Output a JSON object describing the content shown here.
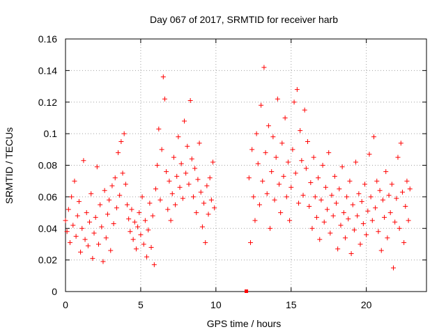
{
  "chart_data": {
    "type": "scatter",
    "title": "Day 067 of 2017, SRMTID for receiver harb",
    "xlabel": "GPS time / hours",
    "ylabel": "SRMTID / TECUs",
    "xlim": [
      0,
      24
    ],
    "ylim": [
      0,
      0.16
    ],
    "x_ticks": [
      0,
      5,
      10,
      15,
      20
    ],
    "x_tick_labels": [
      "0",
      "5",
      "10",
      "15",
      "20"
    ],
    "y_ticks": [
      0,
      0.02,
      0.04,
      0.06,
      0.08,
      0.1,
      0.12,
      0.14,
      0.16
    ],
    "y_tick_labels": [
      "0",
      "0.02",
      "0.04",
      "0.06",
      "0.08",
      "0.1",
      "0.12",
      "0.14",
      "0.16"
    ],
    "grid": true,
    "marker": "+",
    "series": [
      {
        "name": "SRMTID",
        "color": "#ff0000",
        "points": [
          [
            0.0,
            0.045
          ],
          [
            0.1,
            0.038
          ],
          [
            0.2,
            0.052
          ],
          [
            0.3,
            0.031
          ],
          [
            0.4,
            0.06
          ],
          [
            0.5,
            0.042
          ],
          [
            0.6,
            0.07
          ],
          [
            0.7,
            0.035
          ],
          [
            0.8,
            0.048
          ],
          [
            0.9,
            0.057
          ],
          [
            1.0,
            0.025
          ],
          [
            1.1,
            0.04
          ],
          [
            1.2,
            0.083
          ],
          [
            1.3,
            0.033
          ],
          [
            1.4,
            0.05
          ],
          [
            1.5,
            0.029
          ],
          [
            1.6,
            0.044
          ],
          [
            1.7,
            0.062
          ],
          [
            1.8,
            0.021
          ],
          [
            1.9,
            0.037
          ],
          [
            2.0,
            0.047
          ],
          [
            2.1,
            0.079
          ],
          [
            2.2,
            0.03
          ],
          [
            2.3,
            0.055
          ],
          [
            2.4,
            0.041
          ],
          [
            2.5,
            0.019
          ],
          [
            2.6,
            0.064
          ],
          [
            2.7,
            0.034
          ],
          [
            2.8,
            0.049
          ],
          [
            2.9,
            0.058
          ],
          [
            3.0,
            0.026
          ],
          [
            3.1,
            0.067
          ],
          [
            3.2,
            0.043
          ],
          [
            3.3,
            0.072
          ],
          [
            3.4,
            0.053
          ],
          [
            3.5,
            0.088
          ],
          [
            3.6,
            0.061
          ],
          [
            3.7,
            0.095
          ],
          [
            3.8,
            0.075
          ],
          [
            3.9,
            0.1
          ],
          [
            4.0,
            0.068
          ],
          [
            4.1,
            0.055
          ],
          [
            4.2,
            0.046
          ],
          [
            4.3,
            0.038
          ],
          [
            4.4,
            0.052
          ],
          [
            4.5,
            0.033
          ],
          [
            4.6,
            0.044
          ],
          [
            4.7,
            0.027
          ],
          [
            4.8,
            0.041
          ],
          [
            4.9,
            0.05
          ],
          [
            5.0,
            0.036
          ],
          [
            5.1,
            0.06
          ],
          [
            5.2,
            0.03
          ],
          [
            5.3,
            0.045
          ],
          [
            5.4,
            0.022
          ],
          [
            5.5,
            0.039
          ],
          [
            5.6,
            0.056
          ],
          [
            5.7,
            0.028
          ],
          [
            5.8,
            0.048
          ],
          [
            5.9,
            0.017
          ],
          [
            6.0,
            0.065
          ],
          [
            6.1,
            0.08
          ],
          [
            6.2,
            0.103
          ],
          [
            6.3,
            0.058
          ],
          [
            6.4,
            0.09
          ],
          [
            6.5,
            0.136
          ],
          [
            6.6,
            0.122
          ],
          [
            6.7,
            0.076
          ],
          [
            6.8,
            0.052
          ],
          [
            6.9,
            0.07
          ],
          [
            7.0,
            0.045
          ],
          [
            7.1,
            0.062
          ],
          [
            7.2,
            0.085
          ],
          [
            7.3,
            0.055
          ],
          [
            7.4,
            0.073
          ],
          [
            7.5,
            0.098
          ],
          [
            7.6,
            0.066
          ],
          [
            7.7,
            0.081
          ],
          [
            7.8,
            0.059
          ],
          [
            7.9,
            0.108
          ],
          [
            8.0,
            0.075
          ],
          [
            8.1,
            0.092
          ],
          [
            8.2,
            0.068
          ],
          [
            8.3,
            0.121
          ],
          [
            8.4,
            0.084
          ],
          [
            8.5,
            0.06
          ],
          [
            8.6,
            0.078
          ],
          [
            8.7,
            0.05
          ],
          [
            8.8,
            0.071
          ],
          [
            8.9,
            0.094
          ],
          [
            9.0,
            0.063
          ],
          [
            9.1,
            0.041
          ],
          [
            9.2,
            0.056
          ],
          [
            9.3,
            0.031
          ],
          [
            9.4,
            0.067
          ],
          [
            9.5,
            0.049
          ],
          [
            9.6,
            0.072
          ],
          [
            9.7,
            0.058
          ],
          [
            9.8,
            0.082
          ],
          [
            9.9,
            0.053
          ],
          [
            12.2,
            0.072
          ],
          [
            12.3,
            0.031
          ],
          [
            12.4,
            0.09
          ],
          [
            12.5,
            0.06
          ],
          [
            12.6,
            0.045
          ],
          [
            12.7,
            0.1
          ],
          [
            12.8,
            0.081
          ],
          [
            12.9,
            0.055
          ],
          [
            13.0,
            0.118
          ],
          [
            13.1,
            0.07
          ],
          [
            13.2,
            0.142
          ],
          [
            13.3,
            0.088
          ],
          [
            13.4,
            0.062
          ],
          [
            13.5,
            0.105
          ],
          [
            13.6,
            0.04
          ],
          [
            13.7,
            0.076
          ],
          [
            13.8,
            0.098
          ],
          [
            13.9,
            0.058
          ],
          [
            14.0,
            0.085
          ],
          [
            14.1,
            0.122
          ],
          [
            14.2,
            0.068
          ],
          [
            14.3,
            0.05
          ],
          [
            14.4,
            0.094
          ],
          [
            14.5,
            0.073
          ],
          [
            14.6,
            0.11
          ],
          [
            14.7,
            0.06
          ],
          [
            14.8,
            0.082
          ],
          [
            14.9,
            0.045
          ],
          [
            15.0,
            0.066
          ],
          [
            15.1,
            0.09
          ],
          [
            15.2,
            0.12
          ],
          [
            15.3,
            0.075
          ],
          [
            15.4,
            0.128
          ],
          [
            15.5,
            0.056
          ],
          [
            15.6,
            0.102
          ],
          [
            15.7,
            0.083
          ],
          [
            15.8,
            0.061
          ],
          [
            15.9,
            0.115
          ],
          [
            16.0,
            0.078
          ],
          [
            16.1,
            0.095
          ],
          [
            16.2,
            0.054
          ],
          [
            16.3,
            0.069
          ],
          [
            16.4,
            0.04
          ],
          [
            16.5,
            0.085
          ],
          [
            16.6,
            0.06
          ],
          [
            16.7,
            0.047
          ],
          [
            16.8,
            0.072
          ],
          [
            16.9,
            0.033
          ],
          [
            17.0,
            0.058
          ],
          [
            17.1,
            0.08
          ],
          [
            17.2,
            0.044
          ],
          [
            17.3,
            0.066
          ],
          [
            17.4,
            0.052
          ],
          [
            17.5,
            0.088
          ],
          [
            17.6,
            0.037
          ],
          [
            17.7,
            0.061
          ],
          [
            17.8,
            0.048
          ],
          [
            17.9,
            0.073
          ],
          [
            18.0,
            0.056
          ],
          [
            18.1,
            0.027
          ],
          [
            18.2,
            0.065
          ],
          [
            18.3,
            0.042
          ],
          [
            18.4,
            0.079
          ],
          [
            18.5,
            0.05
          ],
          [
            18.6,
            0.034
          ],
          [
            18.7,
            0.06
          ],
          [
            18.8,
            0.046
          ],
          [
            18.9,
            0.07
          ],
          [
            19.0,
            0.024
          ],
          [
            19.1,
            0.055
          ],
          [
            19.2,
            0.039
          ],
          [
            19.3,
            0.082
          ],
          [
            19.4,
            0.048
          ],
          [
            19.5,
            0.062
          ],
          [
            19.6,
            0.03
          ],
          [
            19.7,
            0.057
          ],
          [
            19.8,
            0.043
          ],
          [
            19.9,
            0.068
          ],
          [
            20.0,
            0.036
          ],
          [
            20.1,
            0.051
          ],
          [
            20.2,
            0.087
          ],
          [
            20.3,
            0.06
          ],
          [
            20.4,
            0.045
          ],
          [
            20.5,
            0.098
          ],
          [
            20.6,
            0.053
          ],
          [
            20.7,
            0.07
          ],
          [
            20.8,
            0.038
          ],
          [
            20.9,
            0.064
          ],
          [
            21.0,
            0.026
          ],
          [
            21.1,
            0.058
          ],
          [
            21.2,
            0.047
          ],
          [
            21.3,
            0.076
          ],
          [
            21.4,
            0.034
          ],
          [
            21.5,
            0.061
          ],
          [
            21.6,
            0.05
          ],
          [
            21.7,
            0.068
          ],
          [
            21.8,
            0.015
          ],
          [
            21.9,
            0.044
          ],
          [
            22.0,
            0.059
          ],
          [
            22.1,
            0.085
          ],
          [
            22.2,
            0.04
          ],
          [
            22.3,
            0.094
          ],
          [
            22.4,
            0.063
          ],
          [
            22.5,
            0.031
          ],
          [
            22.6,
            0.054
          ],
          [
            22.7,
            0.07
          ],
          [
            22.8,
            0.045
          ],
          [
            22.9,
            0.065
          ]
        ]
      }
    ]
  }
}
